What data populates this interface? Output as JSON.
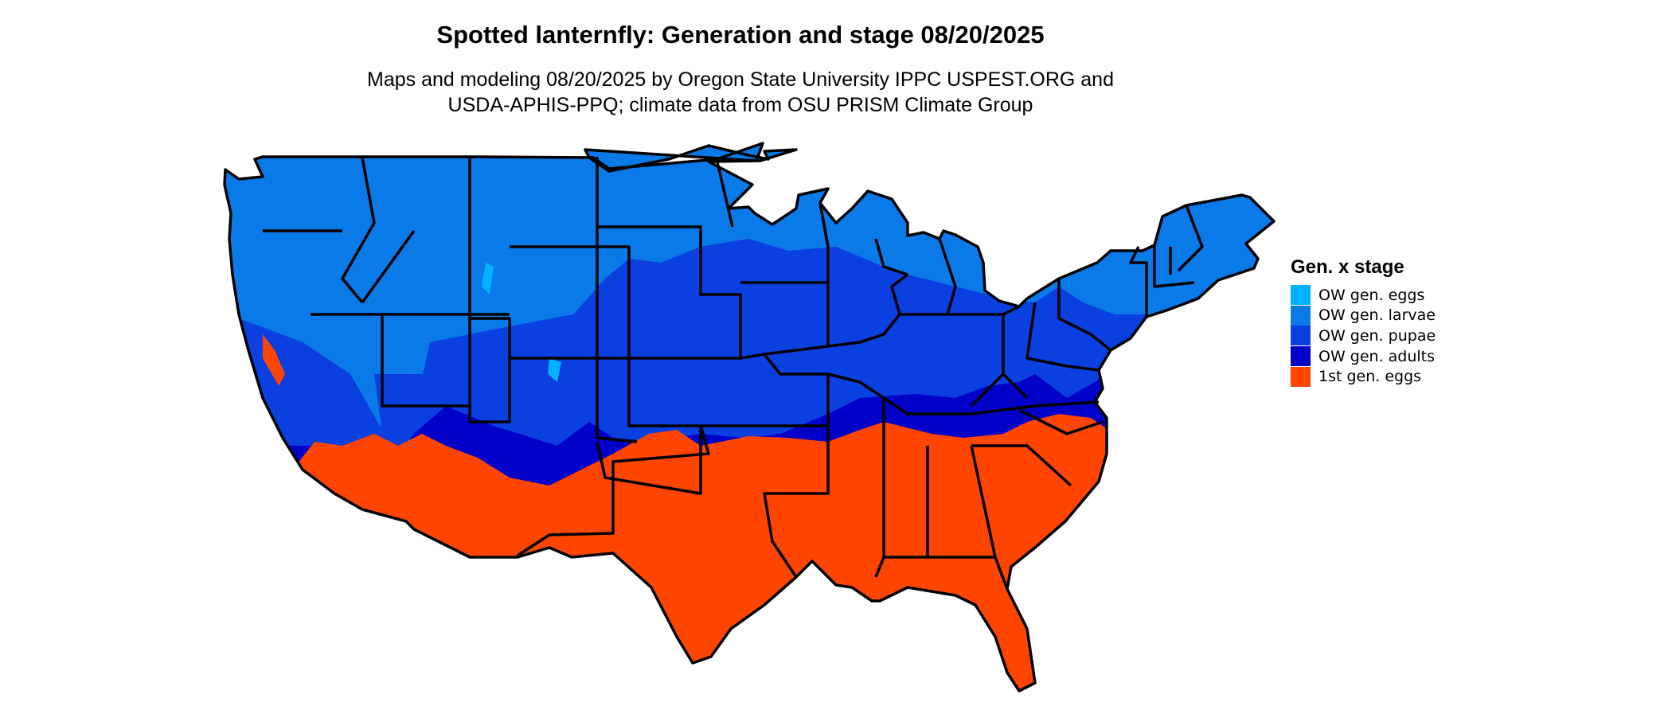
{
  "title": "Spotted lanternfly: Generation and stage 08/20/2025",
  "subtitle": {
    "line1": "Maps and modeling 08/20/2025 by Oregon State University IPPC USPEST.ORG and",
    "line2": "USDA-APHIS-PPQ; climate data from OSU PRISM Climate Group"
  },
  "legend": {
    "title": "Gen. x stage",
    "items": [
      {
        "label": "OW gen. eggs",
        "color": "#00b2ff"
      },
      {
        "label": "OW gen. larvae",
        "color": "#0a7ae8"
      },
      {
        "label": "OW gen. pupae",
        "color": "#0a3fe0"
      },
      {
        "label": "OW gen. adults",
        "color": "#0000c8"
      },
      {
        "label": "1st gen. eggs",
        "color": "#ff4500"
      }
    ]
  },
  "map": {
    "region": "conterminous United States",
    "boundaries": "state outlines",
    "zones_north_to_south": [
      "OW gen. larvae",
      "OW gen. pupae",
      "OW gen. adults",
      "1st gen. eggs"
    ]
  }
}
